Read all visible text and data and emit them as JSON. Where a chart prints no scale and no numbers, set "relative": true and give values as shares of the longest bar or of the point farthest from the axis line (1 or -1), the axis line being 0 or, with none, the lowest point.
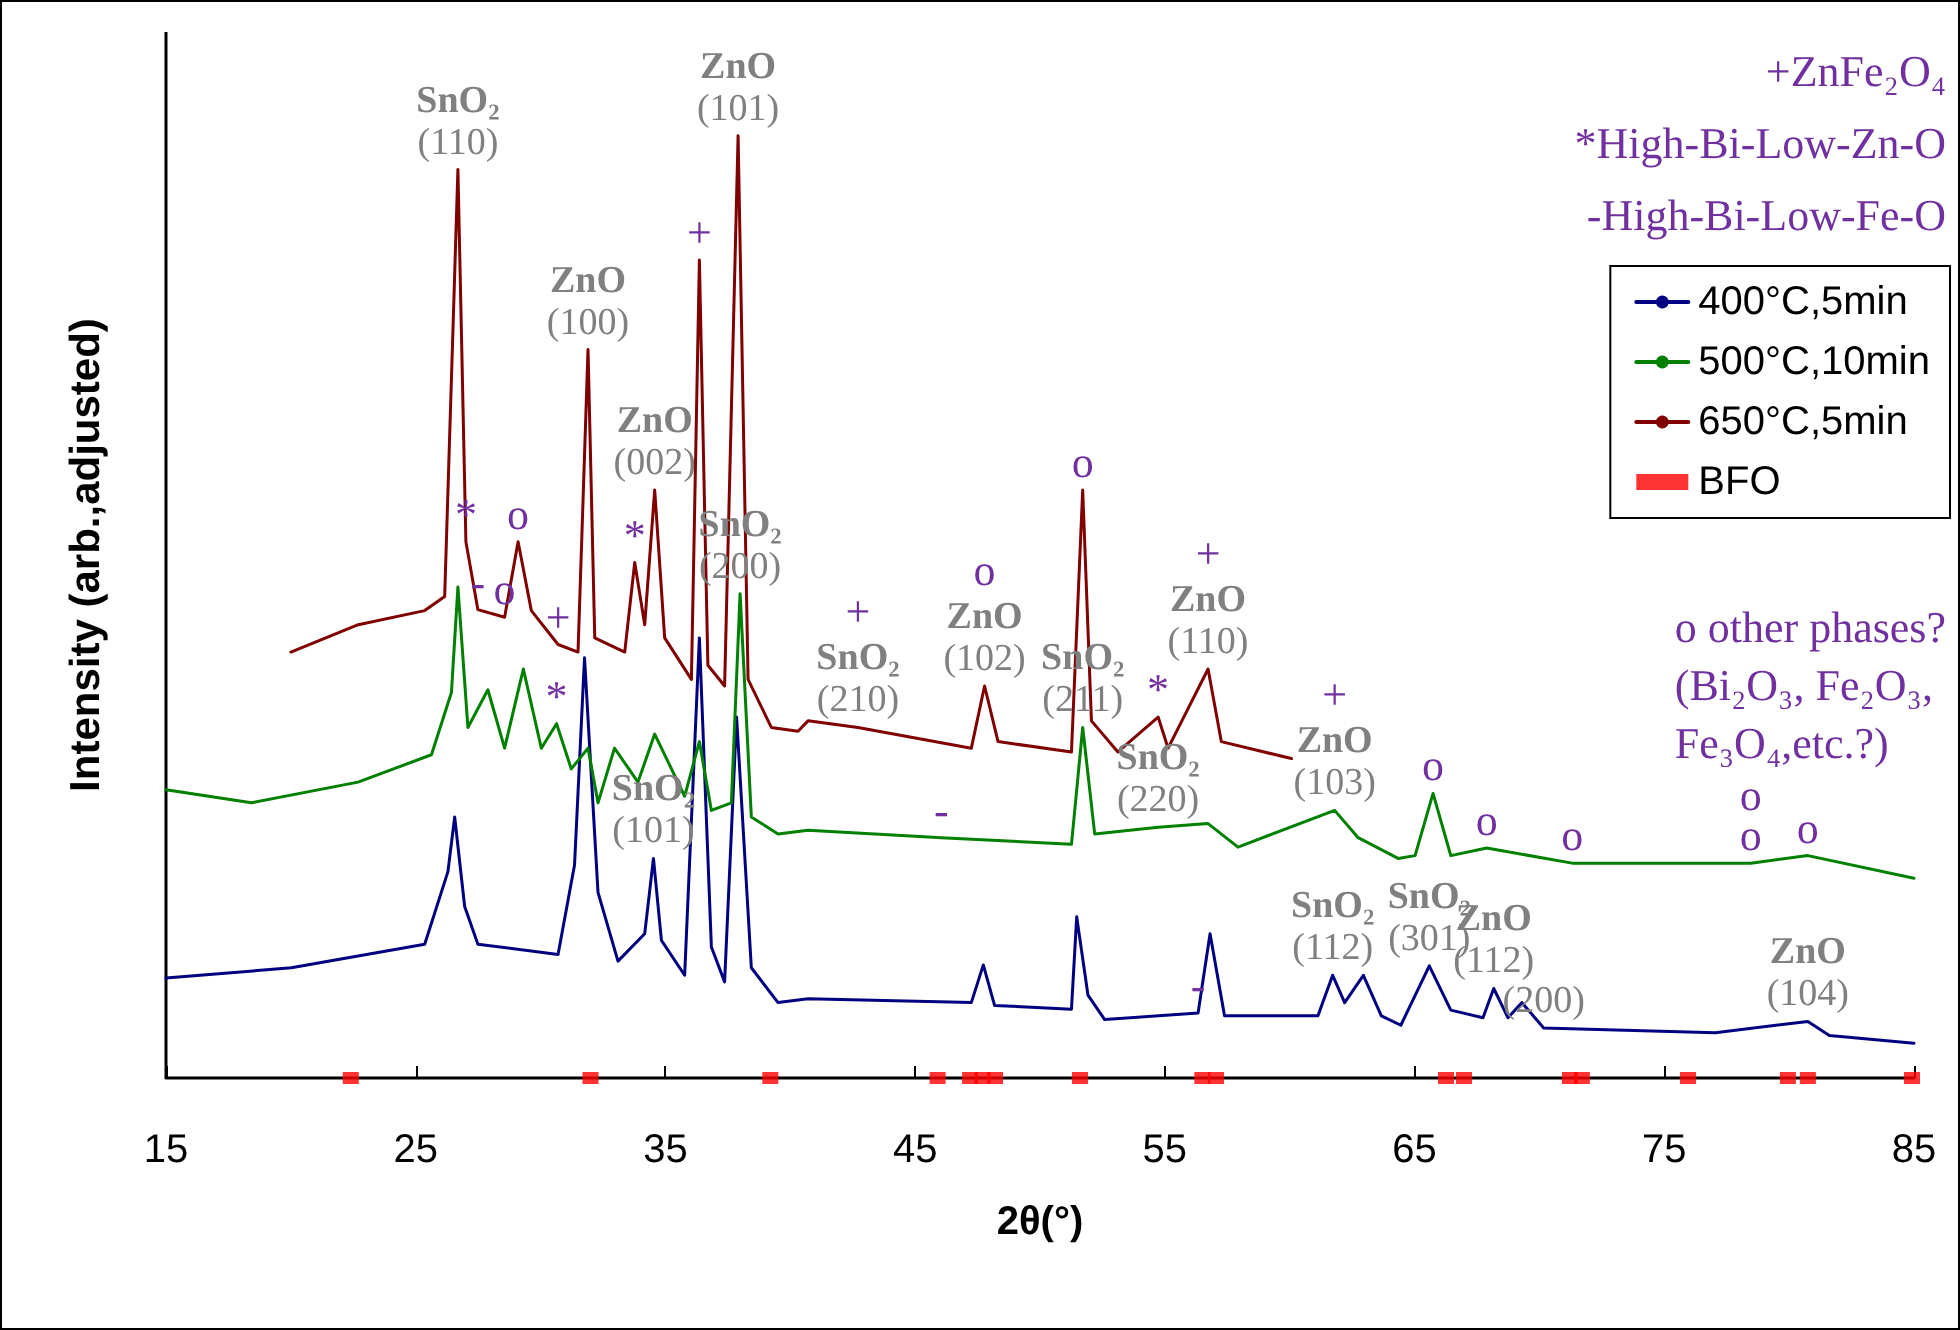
{
  "chart_data": {
    "type": "line",
    "relative": true,
    "xlabel": "2θ(°)",
    "ylabel": "Intensity (arb.,adjusted)",
    "xlim": [
      15,
      85
    ],
    "xticks": [
      15,
      25,
      35,
      45,
      55,
      65,
      75,
      85
    ],
    "grid": false,
    "legend": "top right",
    "marker": "none",
    "line_style": "solid",
    "series": [
      {
        "name": "400°C,5min",
        "color": "#000080",
        "x": [
          15.0,
          20.02,
          25.36,
          26.29,
          26.56,
          26.96,
          27.49,
          30.7,
          31.36,
          31.76,
          32.3,
          33.1,
          34.17,
          34.52,
          34.84,
          35.77,
          36.36,
          36.84,
          37.37,
          37.85,
          38.44,
          39.51,
          40.71,
          47.25,
          47.73,
          48.18,
          51.26,
          51.47,
          51.92,
          52.59,
          56.33,
          56.81,
          57.39,
          61.13,
          61.72,
          62.2,
          62.95,
          63.67,
          64.45,
          65.59,
          66.45,
          67.74,
          68.17,
          68.74,
          69.3,
          70.17,
          77.04,
          80.75,
          81.61,
          85.0
        ],
        "values": [
          0.106,
          0.117,
          0.142,
          0.219,
          0.277,
          0.182,
          0.142,
          0.131,
          0.226,
          0.446,
          0.197,
          0.124,
          0.153,
          0.233,
          0.146,
          0.109,
          0.467,
          0.139,
          0.102,
          0.383,
          0.117,
          0.08,
          0.084,
          0.08,
          0.12,
          0.077,
          0.073,
          0.171,
          0.088,
          0.062,
          0.069,
          0.153,
          0.066,
          0.066,
          0.109,
          0.08,
          0.109,
          0.066,
          0.056,
          0.119,
          0.072,
          0.064,
          0.095,
          0.064,
          0.08,
          0.053,
          0.048,
          0.06,
          0.045,
          0.037
        ]
      },
      {
        "name": "500°C,10min",
        "color": "#008000",
        "x": [
          15.0,
          18.42,
          22.69,
          25.63,
          26.43,
          26.69,
          27.09,
          27.89,
          28.56,
          29.31,
          30.03,
          30.64,
          31.23,
          31.9,
          32.3,
          32.96,
          33.9,
          34.57,
          35.77,
          36.36,
          36.84,
          37.64,
          37.99,
          38.44,
          39.51,
          40.71,
          46.05,
          51.26,
          51.71,
          52.19,
          54.73,
          56.73,
          57.93,
          61.8,
          62.74,
          64.34,
          65.02,
          65.74,
          66.45,
          67.89,
          71.31,
          78.46,
          80.75,
          85.0
        ],
        "values": [
          0.306,
          0.292,
          0.314,
          0.343,
          0.409,
          0.521,
          0.372,
          0.412,
          0.35,
          0.434,
          0.35,
          0.376,
          0.328,
          0.35,
          0.292,
          0.35,
          0.314,
          0.365,
          0.299,
          0.357,
          0.284,
          0.292,
          0.514,
          0.277,
          0.259,
          0.263,
          0.255,
          0.248,
          0.372,
          0.259,
          0.266,
          0.27,
          0.245,
          0.284,
          0.255,
          0.233,
          0.236,
          0.302,
          0.236,
          0.244,
          0.228,
          0.228,
          0.236,
          0.212
        ]
      },
      {
        "name": "650°C,5min",
        "color": "#800000",
        "x": [
          20.0,
          22.7,
          25.36,
          26.16,
          26.69,
          27.01,
          27.49,
          28.56,
          29.1,
          29.63,
          30.7,
          31.5,
          31.9,
          32.17,
          33.37,
          33.77,
          34.17,
          34.57,
          34.97,
          36.04,
          36.36,
          36.7,
          37.37,
          37.91,
          38.31,
          39.24,
          40.31,
          40.71,
          42.71,
          47.25,
          47.78,
          48.32,
          51.26,
          51.71,
          52.06,
          53.12,
          54.73,
          55.13,
          56.73,
          57.26,
          60.07
        ],
        "values": [
          0.452,
          0.481,
          0.496,
          0.511,
          0.964,
          0.569,
          0.497,
          0.489,
          0.569,
          0.496,
          0.46,
          0.452,
          0.773,
          0.467,
          0.452,
          0.547,
          0.481,
          0.624,
          0.467,
          0.423,
          0.868,
          0.438,
          0.416,
          1.0,
          0.423,
          0.372,
          0.368,
          0.379,
          0.372,
          0.35,
          0.416,
          0.357,
          0.346,
          0.624,
          0.379,
          0.346,
          0.383,
          0.35,
          0.434,
          0.357,
          0.339
        ]
      },
      {
        "name": "BFO",
        "type": "scatter",
        "marker": "square",
        "color": "#ff0000",
        "x": [
          22.4,
          32.0,
          39.2,
          45.9,
          47.2,
          47.7,
          48.2,
          51.6,
          56.5,
          57.05,
          66.26,
          66.98,
          71.22,
          71.7,
          75.95,
          79.95,
          80.75,
          84.92
        ],
        "values": [
          0,
          0,
          0,
          0,
          0,
          0,
          0,
          0,
          0,
          0,
          0,
          0,
          0,
          0,
          0,
          0,
          0,
          0
        ]
      }
    ],
    "annotations": [
      "+ZnFe₂O₄",
      "*High-Bi-Low-Zn-O",
      "-High-Bi-Low-Fe-O",
      "o other phases?\n(Bi₂O₃, Fe₂O₃,\nFe₃O₄,etc.?)",
      {
        "text": "SnO₂\n(110)",
        "x": 26.69,
        "y": 0.964
      },
      {
        "text": "ZnO\n(100)",
        "x": 31.9,
        "y": 0.773
      },
      {
        "text": "ZnO\n(101)",
        "x": 37.91,
        "y": 1.0
      },
      {
        "text": "ZnO\n(002)",
        "x": 34.57,
        "y": 0.624
      },
      {
        "text": "SnO₂\n(200)",
        "x": 37.99,
        "y": 0.514
      },
      {
        "text": "SnO₂\n(210)",
        "x": 42.71,
        "y": 0.372
      },
      {
        "text": "ZnO\n(102)",
        "x": 47.78,
        "y": 0.416
      },
      {
        "text": "SnO₂\n(211)",
        "x": 51.71,
        "y": 0.372
      },
      {
        "text": "ZnO\n(110)",
        "x": 56.73,
        "y": 0.434
      },
      {
        "text": "SnO₂\n(101)",
        "x": 34.52,
        "y": 0.233
      },
      {
        "text": "SnO₂\n(220)",
        "x": 54.73,
        "y": 0.266
      },
      {
        "text": "ZnO\n(103)",
        "x": 61.8,
        "y": 0.284
      },
      {
        "text": "SnO₂\n(112)",
        "x": 61.72,
        "y": 0.109
      },
      {
        "text": "SnO₂\n(301)",
        "x": 65.59,
        "y": 0.119
      },
      {
        "text": "ZnO\n(112)",
        "x": 68.17,
        "y": 0.095
      },
      {
        "text": "(200)",
        "x": 70.17,
        "y": 0.053
      },
      {
        "text": "ZnO\n(104)",
        "x": 80.75,
        "y": 0.06
      },
      {
        "text": "+",
        "x": 36.36,
        "y": 0.868
      },
      {
        "text": "-",
        "x": 27.49,
        "y": 0.497
      },
      {
        "text": "*",
        "x": 27.01,
        "y": 0.569
      },
      {
        "text": "o",
        "x": 29.1,
        "y": 0.569
      },
      {
        "text": "o",
        "x": 28.56,
        "y": 0.489
      },
      {
        "text": "+",
        "x": 30.7,
        "y": 0.46
      },
      {
        "text": "*",
        "x": 33.77,
        "y": 0.547
      },
      {
        "text": "+",
        "x": 42.71,
        "y": 0.372
      },
      {
        "text": "o",
        "x": 47.78,
        "y": 0.416
      },
      {
        "text": "-",
        "x": 46.05,
        "y": 0.255
      },
      {
        "text": "*",
        "x": 30.64,
        "y": 0.376
      },
      {
        "text": "o",
        "x": 51.71,
        "y": 0.624
      },
      {
        "text": "+",
        "x": 56.73,
        "y": 0.434
      },
      {
        "text": "+",
        "x": 61.8,
        "y": 0.284
      },
      {
        "text": "*",
        "x": 54.73,
        "y": 0.383
      },
      {
        "text": "-",
        "x": 56.33,
        "y": 0.069
      },
      {
        "text": "o",
        "x": 65.74,
        "y": 0.302
      },
      {
        "text": "o",
        "x": 67.89,
        "y": 0.244
      },
      {
        "text": "o",
        "x": 71.31,
        "y": 0.228
      },
      {
        "text": "o",
        "x": 78.46,
        "y": 0.228
      },
      {
        "text": "o",
        "x": 78.46,
        "y": 0.228
      },
      {
        "text": "o",
        "x": 80.75,
        "y": 0.236
      }
    ]
  }
}
